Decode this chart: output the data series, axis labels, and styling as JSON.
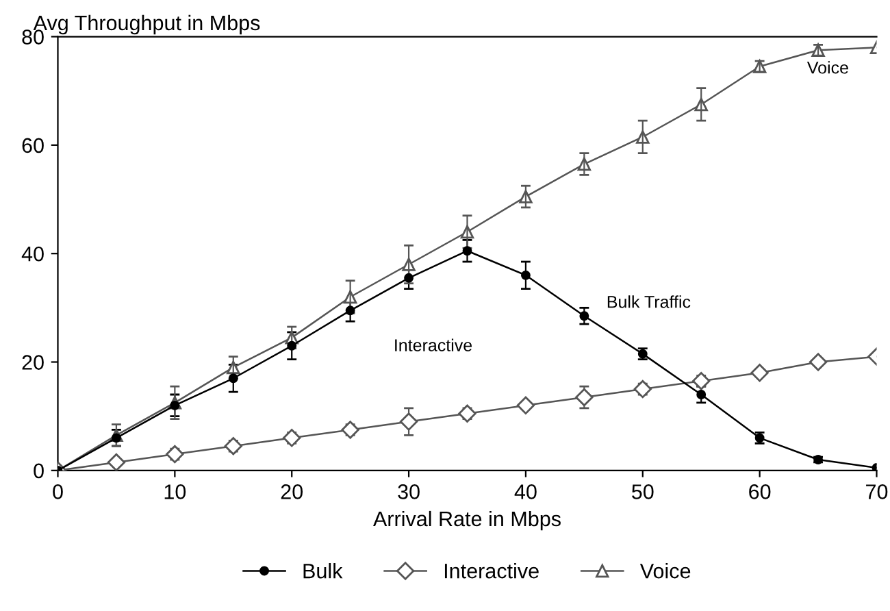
{
  "chart_data": {
    "type": "line",
    "xlabel": "Arrival Rate in Mbps",
    "ylabel": "Avg Throughput in Mbps",
    "x": [
      0,
      5,
      10,
      15,
      20,
      25,
      30,
      35,
      40,
      45,
      50,
      55,
      60,
      65,
      70
    ],
    "xlim": [
      0,
      70
    ],
    "xticks": [
      0,
      10,
      20,
      30,
      40,
      50,
      60,
      70
    ],
    "ylim": [
      0,
      80
    ],
    "yticks": [
      0,
      20,
      40,
      60,
      80
    ],
    "grid": false,
    "legend": "bottom",
    "line_style": "solid",
    "series": [
      {
        "name": "Bulk",
        "color": "#000000",
        "marker": "circle",
        "values": [
          0,
          6,
          12,
          17,
          23,
          29.5,
          35.5,
          40.5,
          36,
          28.5,
          21.5,
          14,
          6,
          2,
          0.5
        ],
        "errors": [
          null,
          1.5,
          2,
          2.5,
          2.5,
          2,
          2,
          2,
          2.5,
          1.5,
          1,
          1.5,
          1,
          0.5,
          null
        ]
      },
      {
        "name": "Interactive",
        "color": "#555555",
        "marker": "diamond",
        "values": [
          0,
          1.5,
          3,
          4.5,
          6,
          7.5,
          9,
          10.5,
          12,
          13.5,
          15,
          16.5,
          18,
          20,
          21
        ],
        "errors": [
          null,
          null,
          1,
          1,
          1,
          1,
          2.5,
          1,
          0.5,
          2,
          1,
          1,
          0.5,
          0.5,
          null
        ]
      },
      {
        "name": "Voice",
        "color": "#555555",
        "marker": "triangle",
        "values": [
          0,
          6.5,
          12.5,
          19,
          24.5,
          32,
          38,
          44,
          50.5,
          56.5,
          61.5,
          67.5,
          74.5,
          77.5,
          78
        ],
        "errors": [
          null,
          2,
          3,
          2,
          2,
          3,
          3.5,
          3,
          2,
          2,
          3,
          3,
          1,
          1,
          null
        ]
      }
    ],
    "annotations": [
      "Voice",
      "Bulk Traffic",
      "Interactive"
    ]
  }
}
